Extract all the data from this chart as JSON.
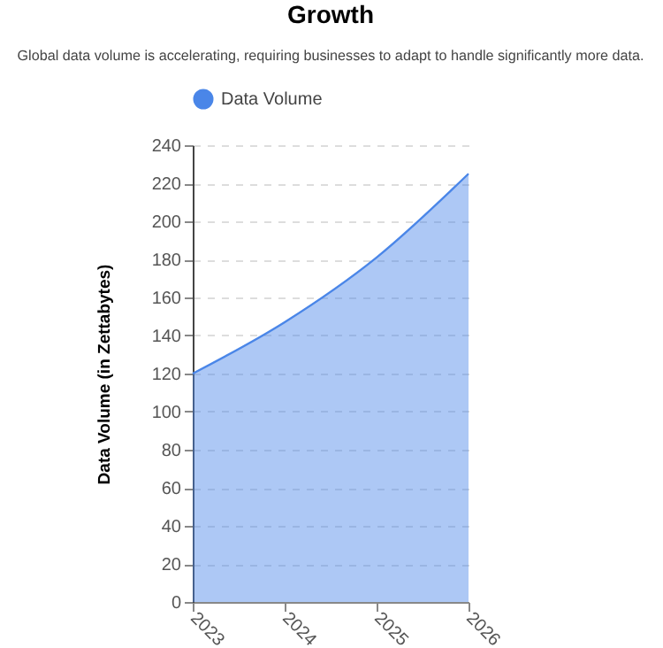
{
  "chart_data": {
    "type": "area",
    "title": "Growth",
    "subtitle": "Global data volume is accelerating, requiring businesses to adapt to handle significantly more data.",
    "ylabel": "Data Volume (in Zettabytes)",
    "categories": [
      "2023",
      "2024",
      "2025",
      "2026"
    ],
    "series": [
      {
        "name": "Data Volume",
        "color": "#4a86e8",
        "values": [
          120,
          147,
          181,
          225
        ]
      }
    ],
    "ylim": [
      0,
      240
    ],
    "yticks": [
      0,
      20,
      40,
      60,
      80,
      100,
      120,
      140,
      160,
      180,
      200,
      220,
      240
    ],
    "grid": "y",
    "legend": "top"
  }
}
